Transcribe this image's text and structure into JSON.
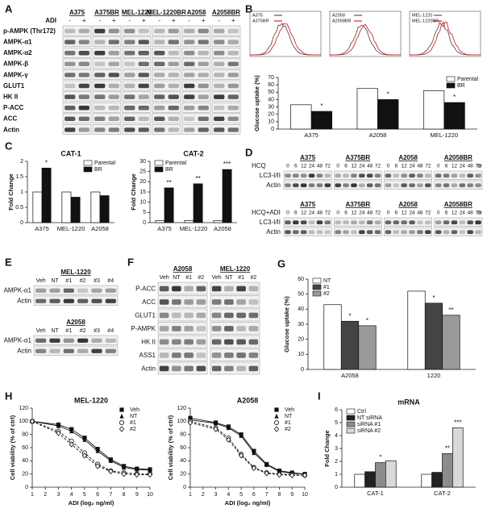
{
  "panels": [
    "A",
    "B",
    "C",
    "D",
    "E",
    "F",
    "G",
    "H",
    "I"
  ],
  "blot_a": {
    "treatment": "ADI",
    "groups": [
      "A375",
      "A375BR",
      "MEL-1220",
      "MEL-1220BR",
      "A2058",
      "A2058BR"
    ],
    "lane_signs": [
      "-",
      "+",
      "-",
      "+",
      "-",
      "+",
      "-",
      "+",
      "-",
      "+",
      "-",
      "+"
    ],
    "rows": [
      "p-AMPK (Thr172)",
      "AMPK-α1",
      "AMPK-α2",
      "AMPK-β",
      "AMPK-γ",
      "GLUT1",
      "HK II",
      "P-ACC",
      "ACC",
      "Actin"
    ]
  },
  "flow_insets": [
    {
      "legend": [
        "A375",
        "A375BR"
      ]
    },
    {
      "legend": [
        "A2058",
        "A2058BR"
      ]
    },
    {
      "legend": [
        "MEL-1220",
        "MEL-1220BR"
      ]
    }
  ],
  "blot_d": {
    "groups": [
      "A375",
      "A375BR",
      "A2058",
      "A2058BR"
    ],
    "timepoints": [
      "0",
      "6",
      "12",
      "24",
      "48",
      "72"
    ],
    "unit": "hr",
    "blocks": [
      {
        "treatment": "HCQ",
        "rows": [
          "LC3-I/II",
          "Actin"
        ]
      },
      {
        "treatment": "HCQ+ADI",
        "rows": [
          "LC3-I/II",
          "Actin"
        ]
      }
    ]
  },
  "blot_e": [
    {
      "title": "MEL-1220",
      "lanes": [
        "Veh",
        "NT",
        "#1",
        "#2",
        "#3",
        "#4"
      ],
      "rows": [
        "AMPK-α1",
        "Actin"
      ]
    },
    {
      "title": "A2058",
      "lanes": [
        "Veh",
        "NT",
        "#1",
        "#2",
        "#3",
        "#4"
      ],
      "rows": [
        "AMPK-α1",
        "Actin"
      ]
    }
  ],
  "blot_f": {
    "groups": [
      {
        "title": "A2058",
        "lanes": [
          "Veh",
          "NT",
          "#1",
          "#2"
        ]
      },
      {
        "title": "MEL-1220",
        "lanes": [
          "Veh",
          "NT",
          "#1",
          "#2"
        ]
      }
    ],
    "rows": [
      "P-ACC",
      "ACC",
      "GLUT1",
      "P-AMPK",
      "HK II",
      "ASS1",
      "Actin"
    ]
  },
  "chart_data": [
    {
      "type": "bar",
      "y_label": "Glucose uptake (%)",
      "categories": [
        "A375",
        "A2058",
        "MEL-1220"
      ],
      "series": [
        {
          "name": "Parental",
          "color": "#ffffff",
          "values": [
            33,
            55,
            52
          ]
        },
        {
          "name": "BR",
          "color": "#111111",
          "values": [
            24,
            40,
            36
          ]
        }
      ],
      "ylim": [
        0,
        70
      ],
      "yticks": [
        0,
        10,
        20,
        30,
        40,
        50,
        60,
        70
      ],
      "legend": "top-right",
      "annotations": [
        {
          "text": "*",
          "category": "A375",
          "series": "BR"
        },
        {
          "text": "*",
          "category": "A2058",
          "series": "BR"
        },
        {
          "text": "*",
          "category": "MEL-1220",
          "series": "BR"
        }
      ]
    },
    {
      "type": "bar",
      "title": "CAT-1",
      "y_label": "Fold Change",
      "categories": [
        "A375",
        "MEL-1220",
        "A2058"
      ],
      "series": [
        {
          "name": "Parental",
          "color": "#ffffff",
          "values": [
            1,
            1,
            1
          ]
        },
        {
          "name": "BR",
          "color": "#111111",
          "values": [
            1.78,
            0.83,
            0.88
          ]
        }
      ],
      "ylim": [
        0,
        2
      ],
      "yticks": [
        0,
        0.5,
        1,
        1.5,
        2
      ],
      "legend": "top-right",
      "annotations": [
        {
          "text": "*",
          "category": "A375",
          "series": "BR"
        }
      ]
    },
    {
      "type": "bar",
      "title": "CAT-2",
      "y_label": "Fold Change",
      "categories": [
        "A375",
        "MEL-1220",
        "A2058"
      ],
      "series": [
        {
          "name": "Parental",
          "color": "#ffffff",
          "values": [
            1,
            1,
            1
          ]
        },
        {
          "name": "BR",
          "color": "#111111",
          "values": [
            17,
            19,
            26
          ]
        }
      ],
      "ylim": [
        0,
        30
      ],
      "yticks": [
        0,
        5,
        10,
        15,
        20,
        25,
        30
      ],
      "legend": "top-left",
      "annotations": [
        {
          "text": "**",
          "category": "A375",
          "series": "BR"
        },
        {
          "text": "**",
          "category": "MEL-1220",
          "series": "BR"
        },
        {
          "text": "***",
          "category": "A2058",
          "series": "BR"
        }
      ]
    },
    {
      "type": "bar",
      "y_label": "Glucose uptake (%)",
      "categories": [
        "A2058",
        "1220"
      ],
      "series": [
        {
          "name": "NT",
          "color": "#ffffff",
          "values": [
            43,
            52
          ]
        },
        {
          "name": "#1",
          "color": "#444444",
          "values": [
            32,
            44
          ]
        },
        {
          "name": "#2",
          "color": "#9a9a9a",
          "values": [
            29,
            36
          ]
        }
      ],
      "ylim": [
        0,
        60
      ],
      "yticks": [
        0,
        10,
        20,
        30,
        40,
        50,
        60
      ],
      "legend": "top-left",
      "annotations": [
        {
          "text": "*",
          "category": "A2058",
          "series": "#1"
        },
        {
          "text": "*",
          "category": "A2058",
          "series": "#2"
        },
        {
          "text": "*",
          "category": "1220",
          "series": "#1"
        },
        {
          "text": "**",
          "category": "1220",
          "series": "#2"
        }
      ]
    },
    {
      "type": "line",
      "title": "MEL-1220",
      "x_label": "ADI (log₂ ng/ml)",
      "y_label": "Cell viability (% of ctrl)",
      "x": [
        1,
        3,
        4,
        5,
        6,
        7,
        8,
        9,
        10
      ],
      "series": [
        {
          "name": "Veh",
          "color": "#111111",
          "marker": "square",
          "dashed": false,
          "values": [
            100,
            95,
            88,
            75,
            58,
            42,
            32,
            28,
            27
          ]
        },
        {
          "name": "NT",
          "color": "#111111",
          "marker": "triangle",
          "dashed": false,
          "values": [
            100,
            93,
            85,
            72,
            55,
            40,
            30,
            27,
            26
          ]
        },
        {
          "name": "#1",
          "color": "#111111",
          "marker": "circle",
          "dashed": true,
          "values": [
            100,
            85,
            70,
            52,
            35,
            25,
            22,
            20,
            20
          ]
        },
        {
          "name": "#2",
          "color": "#111111",
          "marker": "diamond",
          "dashed": true,
          "values": [
            100,
            82,
            65,
            48,
            32,
            24,
            20,
            19,
            19
          ]
        }
      ],
      "xlim": [
        1,
        10
      ],
      "xticks": [
        1,
        2,
        3,
        4,
        5,
        6,
        7,
        8,
        9,
        10
      ],
      "ylim": [
        0,
        120
      ],
      "yticks": [
        0,
        20,
        40,
        60,
        80,
        100,
        120
      ],
      "legend": "top-right"
    },
    {
      "type": "line",
      "title": "A2058",
      "x_label": "ADI (log₂ ng/ml)",
      "y_label": "Cell viability (% of ctrl)",
      "x": [
        1,
        3,
        4,
        5,
        6,
        7,
        8,
        9,
        10
      ],
      "series": [
        {
          "name": "Veh",
          "color": "#111111",
          "marker": "square",
          "dashed": false,
          "values": [
            105,
            98,
            92,
            80,
            55,
            35,
            25,
            22,
            20
          ]
        },
        {
          "name": "NT",
          "color": "#111111",
          "marker": "triangle",
          "dashed": false,
          "values": [
            102,
            97,
            90,
            78,
            52,
            34,
            24,
            21,
            20
          ]
        },
        {
          "name": "#1",
          "color": "#111111",
          "marker": "circle",
          "dashed": true,
          "values": [
            100,
            90,
            75,
            50,
            30,
            22,
            20,
            19,
            18
          ]
        },
        {
          "name": "#2",
          "color": "#111111",
          "marker": "diamond",
          "dashed": true,
          "values": [
            98,
            88,
            72,
            48,
            29,
            21,
            19,
            18,
            18
          ]
        }
      ],
      "xlim": [
        1,
        10
      ],
      "xticks": [
        1,
        2,
        3,
        4,
        5,
        6,
        7,
        8,
        9,
        10
      ],
      "ylim": [
        0,
        120
      ],
      "yticks": [
        0,
        20,
        40,
        60,
        80,
        100,
        120
      ],
      "legend": "top-right"
    },
    {
      "type": "bar",
      "title": "mRNA",
      "y_label": "Fold Change",
      "categories": [
        "CAT-1",
        "CAT-2"
      ],
      "series": [
        {
          "name": "Ctrl",
          "color": "#ffffff",
          "values": [
            1,
            1
          ]
        },
        {
          "name": "NT siRNA",
          "color": "#222222",
          "values": [
            1.2,
            1.15
          ]
        },
        {
          "name": "siRNA #1",
          "color": "#8c8c8c",
          "values": [
            1.9,
            2.6
          ]
        },
        {
          "name": "siRNA #2",
          "color": "#d9d9d9",
          "values": [
            2.05,
            4.6
          ]
        }
      ],
      "ylim": [
        0,
        6
      ],
      "yticks": [
        0,
        1,
        2,
        3,
        4,
        5,
        6
      ],
      "legend": "top-left",
      "annotations": [
        {
          "text": "*",
          "category": "CAT-1",
          "series": "siRNA #1"
        },
        {
          "text": "**",
          "category": "CAT-2",
          "series": "siRNA #1"
        },
        {
          "text": "***",
          "category": "CAT-2",
          "series": "siRNA #2"
        }
      ]
    }
  ]
}
